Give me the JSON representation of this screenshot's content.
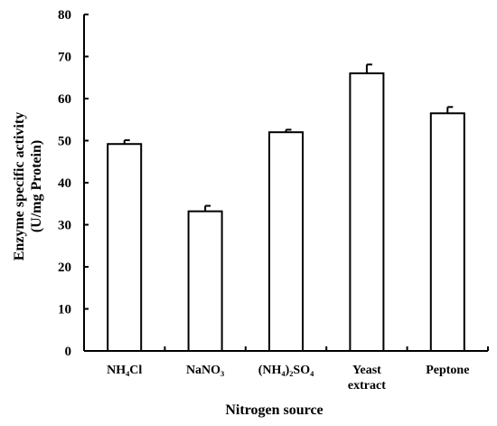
{
  "chart_data": {
    "type": "bar",
    "title": "",
    "xlabel": "Nitrogen source",
    "ylabel": [
      "Enzyme specific activity",
      "(U/mg Protein)"
    ],
    "categories": [
      [
        "NH₄Cl"
      ],
      [
        "NaNO₃"
      ],
      [
        "(NH₄)₂SO₄"
      ],
      [
        "Yeast",
        "extract"
      ],
      [
        "Peptone"
      ]
    ],
    "values": [
      49.2,
      33.2,
      52.0,
      66.0,
      56.5
    ],
    "errors": [
      0.9,
      1.3,
      0.6,
      2.1,
      1.5
    ],
    "ylim": [
      0,
      80
    ],
    "yticks": [
      0,
      10,
      20,
      30,
      40,
      50,
      60,
      70,
      80
    ],
    "grid": false,
    "legend": "none",
    "bar_fill": "#ffffff",
    "bar_stroke": "#000000"
  }
}
